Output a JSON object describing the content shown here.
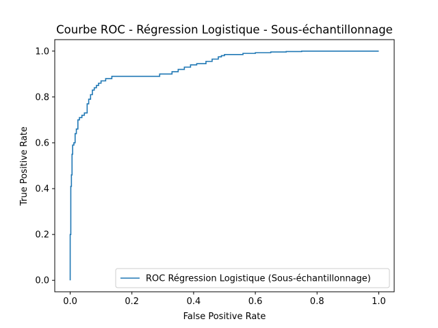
{
  "chart_data": {
    "type": "line",
    "title": "Courbe ROC - Régression Logistique - Sous-échantillonnage",
    "xlabel": "False Positive Rate",
    "ylabel": "True Positive Rate",
    "xlim": [
      -0.05,
      1.05
    ],
    "ylim": [
      -0.05,
      1.05
    ],
    "xticks": [
      0.0,
      0.2,
      0.4,
      0.6,
      0.8,
      1.0
    ],
    "yticks": [
      0.0,
      0.2,
      0.4,
      0.6,
      0.8,
      1.0
    ],
    "xtick_labels": [
      "0.0",
      "0.2",
      "0.4",
      "0.6",
      "0.8",
      "1.0"
    ],
    "ytick_labels": [
      "0.0",
      "0.2",
      "0.4",
      "0.6",
      "0.8",
      "1.0"
    ],
    "grid": false,
    "legend_position": "lower-right",
    "series": [
      {
        "name": "ROC Régression Logistique (Sous-échantillonnage)",
        "color": "#1f77b4",
        "step": true,
        "x": [
          0.0,
          0.0,
          0.002,
          0.002,
          0.004,
          0.004,
          0.006,
          0.006,
          0.008,
          0.008,
          0.012,
          0.012,
          0.016,
          0.016,
          0.02,
          0.02,
          0.025,
          0.025,
          0.03,
          0.03,
          0.038,
          0.038,
          0.046,
          0.046,
          0.055,
          0.055,
          0.06,
          0.06,
          0.066,
          0.066,
          0.072,
          0.072,
          0.078,
          0.078,
          0.085,
          0.085,
          0.092,
          0.092,
          0.1,
          0.1,
          0.115,
          0.115,
          0.135,
          0.135,
          0.29,
          0.29,
          0.33,
          0.33,
          0.35,
          0.35,
          0.37,
          0.37,
          0.39,
          0.39,
          0.41,
          0.41,
          0.44,
          0.44,
          0.46,
          0.46,
          0.48,
          0.48,
          0.49,
          0.49,
          0.5,
          0.5,
          0.56,
          0.56,
          0.6,
          0.6,
          0.65,
          0.65,
          0.7,
          0.7,
          0.75,
          0.75,
          0.8,
          0.8,
          1.0
        ],
        "y": [
          0.0,
          0.2,
          0.2,
          0.41,
          0.41,
          0.46,
          0.46,
          0.55,
          0.55,
          0.59,
          0.59,
          0.6,
          0.6,
          0.64,
          0.64,
          0.66,
          0.66,
          0.7,
          0.7,
          0.71,
          0.71,
          0.72,
          0.72,
          0.73,
          0.73,
          0.77,
          0.77,
          0.79,
          0.79,
          0.81,
          0.81,
          0.83,
          0.83,
          0.84,
          0.84,
          0.85,
          0.85,
          0.86,
          0.86,
          0.87,
          0.87,
          0.88,
          0.88,
          0.89,
          0.89,
          0.9,
          0.9,
          0.91,
          0.91,
          0.92,
          0.92,
          0.93,
          0.93,
          0.94,
          0.94,
          0.945,
          0.945,
          0.955,
          0.955,
          0.965,
          0.965,
          0.975,
          0.975,
          0.98,
          0.98,
          0.985,
          0.985,
          0.99,
          0.99,
          0.993,
          0.993,
          0.996,
          0.996,
          0.998,
          0.998,
          1.0,
          1.0,
          1.0,
          1.0
        ]
      }
    ]
  }
}
